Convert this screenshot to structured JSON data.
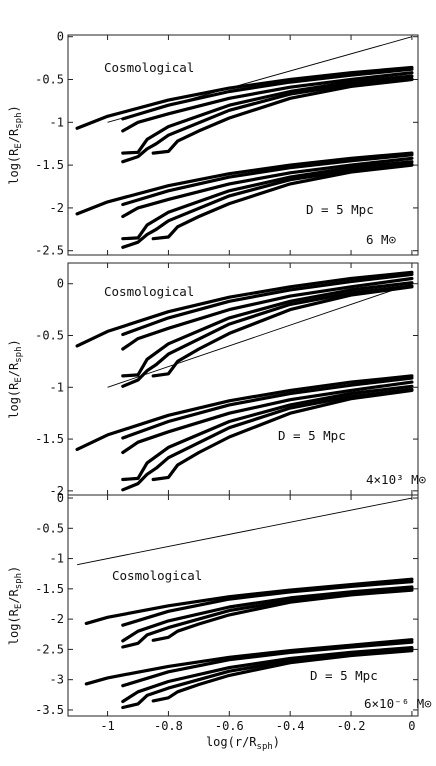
{
  "chart_data": [
    {
      "type": "line",
      "ylabel": "log(R_E/R_sph)",
      "yticks": [
        "0",
        "-0.5",
        "-1",
        "-1.5",
        "-2",
        "-2.5"
      ],
      "xlim": [
        -1.13,
        0.02
      ],
      "ylim": [
        -2.55,
        0.02
      ],
      "annotations": [
        "Cosmological",
        "D = 5 Mpc",
        "6 M⊙"
      ],
      "reference_line": {
        "x": [
          -1.0,
          0.0
        ],
        "y": [
          -1.0,
          0.0
        ]
      },
      "series": [
        {
          "x": [
            -1.1,
            -1.0,
            -0.8,
            -0.6,
            -0.4,
            -0.2,
            0.0
          ],
          "y": [
            -1.07,
            -0.93,
            -0.74,
            -0.6,
            -0.5,
            -0.42,
            -0.36
          ]
        },
        {
          "x": [
            -0.95,
            -0.8,
            -0.6,
            -0.4,
            -0.2,
            0.0
          ],
          "y": [
            -0.96,
            -0.8,
            -0.64,
            -0.53,
            -0.45,
            -0.38
          ]
        },
        {
          "x": [
            -0.95,
            -0.9,
            -0.8,
            -0.6,
            -0.4,
            -0.2,
            0.0
          ],
          "y": [
            -1.1,
            -1.0,
            -0.9,
            -0.72,
            -0.59,
            -0.5,
            -0.42
          ]
        },
        {
          "x": [
            -0.95,
            -0.9,
            -0.87,
            -0.8,
            -0.6,
            -0.4,
            -0.2,
            0.0
          ],
          "y": [
            -1.36,
            -1.35,
            -1.2,
            -1.05,
            -0.8,
            -0.64,
            -0.53,
            -0.46
          ]
        },
        {
          "x": [
            -0.95,
            -0.9,
            -0.87,
            -0.84,
            -0.8,
            -0.6,
            -0.4,
            -0.2,
            0.0
          ],
          "y": [
            -1.46,
            -1.4,
            -1.31,
            -1.25,
            -1.15,
            -0.86,
            -0.67,
            -0.56,
            -0.49
          ]
        },
        {
          "x": [
            -0.85,
            -0.8,
            -0.77,
            -0.7,
            -0.6,
            -0.4,
            -0.2,
            0.0
          ],
          "y": [
            -1.36,
            -1.34,
            -1.22,
            -1.1,
            -0.95,
            -0.72,
            -0.58,
            -0.5
          ]
        },
        {
          "x": [
            -1.1,
            -1.0,
            -0.8,
            -0.6,
            -0.4,
            -0.2,
            0.0
          ],
          "y": [
            -2.07,
            -1.93,
            -1.74,
            -1.6,
            -1.5,
            -1.42,
            -1.36
          ]
        },
        {
          "x": [
            -0.95,
            -0.8,
            -0.6,
            -0.4,
            -0.2,
            0.0
          ],
          "y": [
            -1.96,
            -1.8,
            -1.64,
            -1.53,
            -1.45,
            -1.38
          ]
        },
        {
          "x": [
            -0.95,
            -0.9,
            -0.8,
            -0.6,
            -0.4,
            -0.2,
            0.0
          ],
          "y": [
            -2.1,
            -2.0,
            -1.9,
            -1.72,
            -1.59,
            -1.5,
            -1.42
          ]
        },
        {
          "x": [
            -0.95,
            -0.9,
            -0.87,
            -0.8,
            -0.6,
            -0.4,
            -0.2,
            0.0
          ],
          "y": [
            -2.36,
            -2.35,
            -2.2,
            -2.05,
            -1.8,
            -1.64,
            -1.53,
            -1.46
          ]
        },
        {
          "x": [
            -0.95,
            -0.9,
            -0.87,
            -0.84,
            -0.8,
            -0.6,
            -0.4,
            -0.2,
            0.0
          ],
          "y": [
            -2.46,
            -2.4,
            -2.31,
            -2.25,
            -2.15,
            -1.86,
            -1.67,
            -1.56,
            -1.49
          ]
        },
        {
          "x": [
            -0.85,
            -0.8,
            -0.77,
            -0.7,
            -0.6,
            -0.4,
            -0.2,
            0.0
          ],
          "y": [
            -2.36,
            -2.34,
            -2.22,
            -2.1,
            -1.95,
            -1.72,
            -1.58,
            -1.5
          ]
        }
      ]
    },
    {
      "type": "line",
      "ylabel": "log(R_E/R_sph)",
      "yticks": [
        "0",
        "-0.5",
        "-1",
        "-1.5",
        "-2"
      ],
      "xlim": [
        -1.13,
        0.02
      ],
      "ylim": [
        -2.04,
        0.2
      ],
      "annotations": [
        "Cosmological",
        "D = 5 Mpc",
        "4×10³ M⊙"
      ],
      "reference_line": {
        "x": [
          -1.0,
          0.0
        ],
        "y": [
          -1.0,
          0.0
        ]
      },
      "series": [
        {
          "x": [
            -1.1,
            -1.0,
            -0.8,
            -0.6,
            -0.4,
            -0.2,
            0.0
          ],
          "y": [
            -0.6,
            -0.46,
            -0.27,
            -0.13,
            -0.03,
            0.05,
            0.11
          ]
        },
        {
          "x": [
            -0.95,
            -0.8,
            -0.6,
            -0.4,
            -0.2,
            0.0
          ],
          "y": [
            -0.49,
            -0.33,
            -0.17,
            -0.06,
            0.02,
            0.09
          ]
        },
        {
          "x": [
            -0.95,
            -0.9,
            -0.8,
            -0.6,
            -0.4,
            -0.2,
            0.0
          ],
          "y": [
            -0.63,
            -0.53,
            -0.43,
            -0.25,
            -0.12,
            -0.03,
            0.05
          ]
        },
        {
          "x": [
            -0.95,
            -0.9,
            -0.87,
            -0.8,
            -0.6,
            -0.4,
            -0.2,
            0.0
          ],
          "y": [
            -0.89,
            -0.88,
            -0.73,
            -0.58,
            -0.33,
            -0.17,
            -0.06,
            0.01
          ]
        },
        {
          "x": [
            -0.95,
            -0.9,
            -0.87,
            -0.84,
            -0.8,
            -0.6,
            -0.4,
            -0.2,
            0.0
          ],
          "y": [
            -0.99,
            -0.93,
            -0.84,
            -0.78,
            -0.68,
            -0.39,
            -0.2,
            -0.09,
            -0.02
          ]
        },
        {
          "x": [
            -0.85,
            -0.8,
            -0.77,
            -0.7,
            -0.6,
            -0.4,
            -0.2,
            0.0
          ],
          "y": [
            -0.89,
            -0.87,
            -0.75,
            -0.63,
            -0.48,
            -0.25,
            -0.11,
            -0.03
          ]
        },
        {
          "x": [
            -1.1,
            -1.0,
            -0.8,
            -0.6,
            -0.4,
            -0.2,
            0.0
          ],
          "y": [
            -1.6,
            -1.46,
            -1.27,
            -1.13,
            -1.03,
            -0.95,
            -0.89
          ]
        },
        {
          "x": [
            -0.95,
            -0.8,
            -0.6,
            -0.4,
            -0.2,
            0.0
          ],
          "y": [
            -1.49,
            -1.33,
            -1.17,
            -1.06,
            -0.98,
            -0.91
          ]
        },
        {
          "x": [
            -0.95,
            -0.9,
            -0.8,
            -0.6,
            -0.4,
            -0.2,
            0.0
          ],
          "y": [
            -1.63,
            -1.53,
            -1.43,
            -1.25,
            -1.12,
            -1.03,
            -0.95
          ]
        },
        {
          "x": [
            -0.95,
            -0.9,
            -0.87,
            -0.8,
            -0.6,
            -0.4,
            -0.2,
            0.0
          ],
          "y": [
            -1.89,
            -1.88,
            -1.73,
            -1.58,
            -1.33,
            -1.17,
            -1.06,
            -0.99
          ]
        },
        {
          "x": [
            -0.95,
            -0.9,
            -0.87,
            -0.84,
            -0.8,
            -0.6,
            -0.4,
            -0.2,
            0.0
          ],
          "y": [
            -1.99,
            -1.93,
            -1.84,
            -1.78,
            -1.68,
            -1.39,
            -1.2,
            -1.09,
            -1.02
          ]
        },
        {
          "x": [
            -0.85,
            -0.8,
            -0.77,
            -0.7,
            -0.6,
            -0.4,
            -0.2,
            0.0
          ],
          "y": [
            -1.89,
            -1.87,
            -1.75,
            -1.63,
            -1.48,
            -1.25,
            -1.11,
            -1.03
          ]
        }
      ]
    },
    {
      "type": "line",
      "xlabel": "log(r/R_sph)",
      "ylabel": "log(R_E/R_sph)",
      "xticks": [
        "-1",
        "-0.8",
        "-0.6",
        "-0.4",
        "-0.2",
        "0"
      ],
      "yticks": [
        "0",
        "-0.5",
        "-1",
        "-1.5",
        "-2",
        "-2.5",
        "-3",
        "-3.5"
      ],
      "xlim": [
        -1.13,
        0.02
      ],
      "ylim": [
        -3.6,
        0.05
      ],
      "annotations": [
        "Cosmological",
        "D = 5 Mpc",
        "6×10⁻⁶ M⊙"
      ],
      "reference_line": {
        "x": [
          -1.1,
          0.0
        ],
        "y": [
          -1.1,
          0.0
        ]
      },
      "series": [
        {
          "x": [
            -1.07,
            -1.0,
            -0.8,
            -0.6,
            -0.4,
            -0.2,
            0.0
          ],
          "y": [
            -2.07,
            -1.97,
            -1.78,
            -1.63,
            -1.52,
            -1.43,
            -1.34
          ]
        },
        {
          "x": [
            -0.95,
            -0.8,
            -0.6,
            -0.4,
            -0.2,
            0.0
          ],
          "y": [
            -2.1,
            -1.87,
            -1.67,
            -1.55,
            -1.46,
            -1.38
          ]
        },
        {
          "x": [
            -0.95,
            -0.9,
            -0.8,
            -0.6,
            -0.4,
            -0.2,
            0.0
          ],
          "y": [
            -2.36,
            -2.2,
            -2.03,
            -1.8,
            -1.65,
            -1.55,
            -1.47
          ]
        },
        {
          "x": [
            -0.95,
            -0.9,
            -0.87,
            -0.8,
            -0.6,
            -0.4,
            -0.2,
            0.0
          ],
          "y": [
            -2.46,
            -2.4,
            -2.26,
            -2.14,
            -1.86,
            -1.69,
            -1.58,
            -1.49
          ]
        },
        {
          "x": [
            -0.85,
            -0.8,
            -0.77,
            -0.7,
            -0.6,
            -0.4,
            -0.2,
            0.0
          ],
          "y": [
            -2.35,
            -2.3,
            -2.2,
            -2.08,
            -1.93,
            -1.72,
            -1.6,
            -1.52
          ]
        },
        {
          "x": [
            -1.07,
            -1.0,
            -0.8,
            -0.6,
            -0.4,
            -0.2,
            0.0
          ],
          "y": [
            -3.07,
            -2.97,
            -2.78,
            -2.63,
            -2.52,
            -2.43,
            -2.34
          ]
        },
        {
          "x": [
            -0.95,
            -0.8,
            -0.6,
            -0.4,
            -0.2,
            0.0
          ],
          "y": [
            -3.1,
            -2.87,
            -2.67,
            -2.55,
            -2.46,
            -2.38
          ]
        },
        {
          "x": [
            -0.95,
            -0.9,
            -0.8,
            -0.6,
            -0.4,
            -0.2,
            0.0
          ],
          "y": [
            -3.36,
            -3.2,
            -3.03,
            -2.8,
            -2.65,
            -2.55,
            -2.47
          ]
        },
        {
          "x": [
            -0.95,
            -0.9,
            -0.87,
            -0.8,
            -0.6,
            -0.4,
            -0.2,
            0.0
          ],
          "y": [
            -3.46,
            -3.4,
            -3.26,
            -3.14,
            -2.86,
            -2.69,
            -2.58,
            -2.49
          ]
        },
        {
          "x": [
            -0.85,
            -0.8,
            -0.77,
            -0.7,
            -0.6,
            -0.4,
            -0.2,
            0.0
          ],
          "y": [
            -3.35,
            -3.3,
            -3.2,
            -3.08,
            -2.93,
            -2.72,
            -2.6,
            -2.52
          ]
        }
      ]
    }
  ]
}
